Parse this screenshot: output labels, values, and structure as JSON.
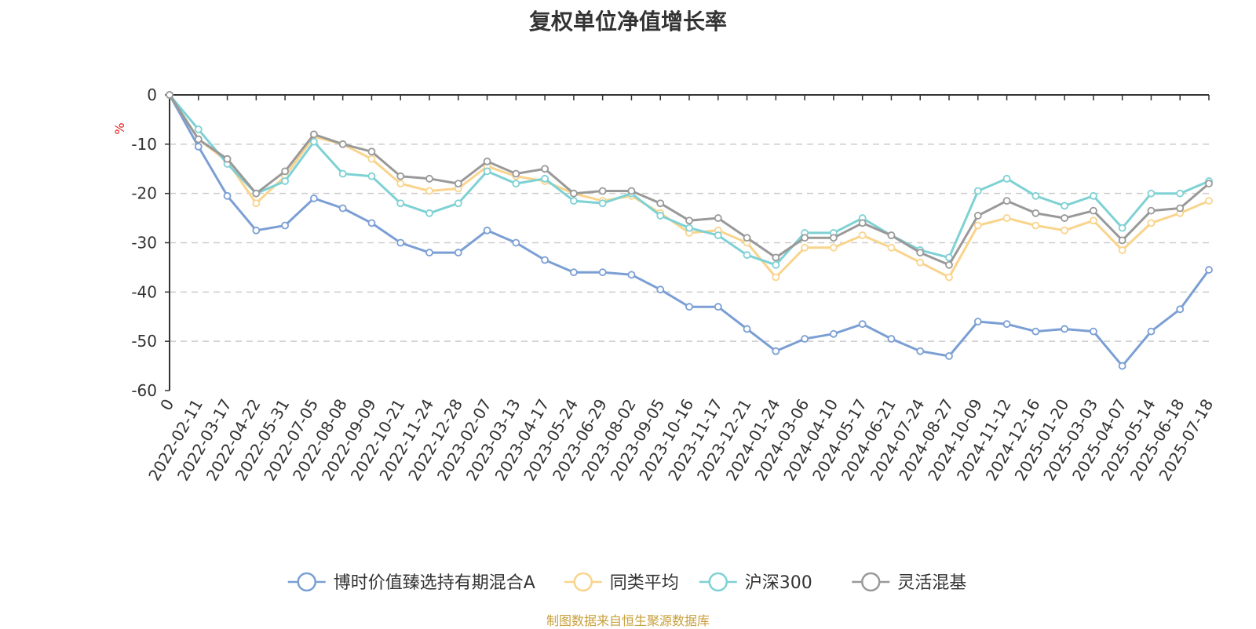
{
  "chart_data": {
    "type": "line",
    "title": "复权单位净值增长率",
    "ylabel": "%",
    "ylim": [
      -60,
      0
    ],
    "yticks": [
      0,
      -10,
      -20,
      -30,
      -40,
      -50,
      -60
    ],
    "xlabels": [
      "0",
      "2022-02-11",
      "2022-03-17",
      "2022-04-22",
      "2022-05-31",
      "2022-07-05",
      "2022-08-08",
      "2022-09-09",
      "2022-10-21",
      "2022-11-24",
      "2022-12-28",
      "2023-02-07",
      "2023-03-13",
      "2023-04-17",
      "2023-05-24",
      "2023-06-29",
      "2023-08-02",
      "2023-09-05",
      "2023-10-16",
      "2023-11-17",
      "2023-12-21",
      "2024-01-24",
      "2024-03-06",
      "2024-04-10",
      "2024-05-17",
      "2024-06-21",
      "2024-07-24",
      "2024-08-27",
      "2024-10-09",
      "2024-11-12",
      "2024-12-16",
      "2025-01-20",
      "2025-03-03",
      "2025-04-07",
      "2025-05-14",
      "2025-06-18",
      "2025-07-18"
    ],
    "grid": true,
    "legend_position": "bottom",
    "series": [
      {
        "name": "博时价值臻选持有期混合A",
        "color": "#7b9fd4",
        "values": [
          0,
          -10.5,
          -20.5,
          -27.5,
          -26.5,
          -21,
          -23,
          -26,
          -30,
          -32,
          -32,
          -27.5,
          -30,
          -33.5,
          -36,
          -36,
          -36.5,
          -39.5,
          -43,
          -43,
          -47.5,
          -52,
          -49.5,
          -48.5,
          -46.5,
          -49.5,
          -52,
          -53,
          -46,
          -46.5,
          -48,
          -47.5,
          -48,
          -55,
          -48,
          -43.5,
          -35.5
        ]
      },
      {
        "name": "同类平均",
        "color": "#f9d48c",
        "values": [
          0,
          -9,
          -13.5,
          -22,
          -16.5,
          -8.5,
          -10,
          -13,
          -18,
          -19.5,
          -19,
          -14.5,
          -16.5,
          -17.5,
          -20,
          -21.5,
          -20.5,
          -24,
          -28,
          -27.5,
          -30,
          -37,
          -31,
          -31,
          -28.5,
          -31,
          -34,
          -37,
          -26.5,
          -25,
          -26.5,
          -27.5,
          -25.5,
          -31.5,
          -26,
          -24,
          -21.5
        ]
      },
      {
        "name": "沪深300",
        "color": "#7ed1d4",
        "values": [
          0,
          -7,
          -14,
          -20,
          -17.5,
          -9.5,
          -16,
          -16.5,
          -22,
          -24,
          -22,
          -15.5,
          -18,
          -17,
          -21.5,
          -22,
          -20,
          -24.5,
          -27,
          -28.5,
          -32.5,
          -34.5,
          -28,
          -28,
          -25,
          -28.5,
          -31.5,
          -33,
          -19.5,
          -17,
          -20.5,
          -22.5,
          -20.5,
          -27,
          -20,
          -20,
          -17.5
        ]
      },
      {
        "name": "灵活混基",
        "color": "#999999",
        "values": [
          0,
          -9,
          -13,
          -20,
          -15.5,
          -8,
          -10,
          -11.5,
          -16.5,
          -17,
          -18,
          -13.5,
          -16,
          -15,
          -20,
          -19.5,
          -19.5,
          -22,
          -25.5,
          -25,
          -29,
          -33,
          -29,
          -29,
          -26,
          -28.5,
          -32,
          -34.5,
          -24.5,
          -21.5,
          -24,
          -25,
          -23.5,
          -29.5,
          -23.5,
          -23,
          -18
        ]
      }
    ]
  },
  "source_text": "制图数据来自恒生聚源数据库"
}
